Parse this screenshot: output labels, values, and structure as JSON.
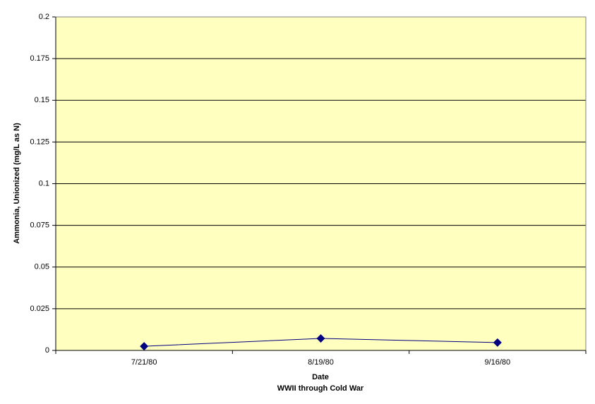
{
  "chart_data": {
    "type": "line",
    "ylabel": "Ammonia, Unionized (mg/L as N)",
    "xlabel": "Date",
    "subtitle": "WWII through Cold War",
    "categories": [
      "7/21/80",
      "8/19/80",
      "9/16/80"
    ],
    "series": [
      {
        "name": "Ammonia, Unionized (mg/L as N)",
        "color": "#000080",
        "values": [
          0.0025,
          0.0072,
          0.0047
        ]
      }
    ],
    "ylim": [
      0,
      0.2
    ],
    "yticks": [
      0,
      0.025,
      0.05,
      0.075,
      0.1,
      0.125,
      0.15,
      0.175,
      0.2
    ],
    "grid": true,
    "background": "#ffffc0"
  }
}
